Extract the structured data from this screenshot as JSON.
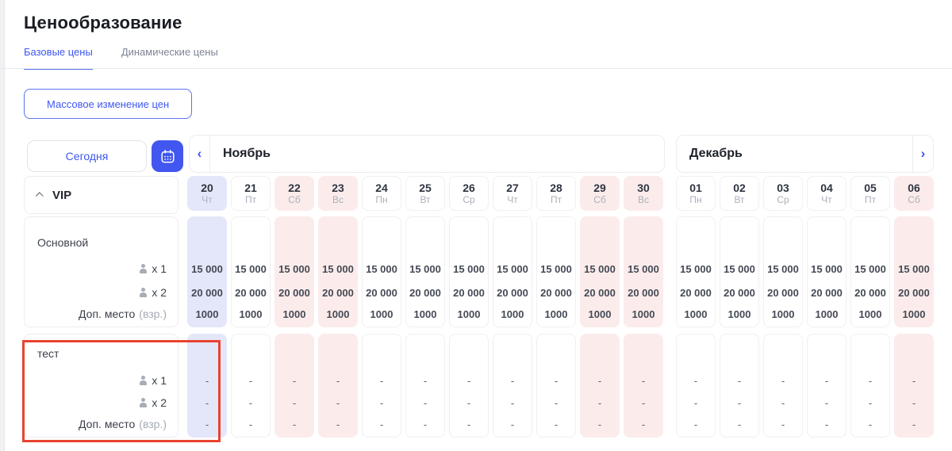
{
  "page": {
    "title": "Ценообразование"
  },
  "tabs": [
    {
      "label": "Базовые цены",
      "active": true
    },
    {
      "label": "Динамические цены",
      "active": false
    }
  ],
  "toolbar": {
    "mass_edit_label": "Массовое изменение цен",
    "today_label": "Сегодня",
    "calendar_icon": "calendar-icon"
  },
  "colors": {
    "accent_blue": "#3f57f0",
    "today_bg": "#e4e7f9",
    "weekend_bg": "#fbeceb",
    "annotation_red": "#e8432f"
  },
  "calendar": {
    "prev_icon": "‹",
    "next_icon": "›",
    "months": [
      {
        "name": "Ноябрь"
      },
      {
        "name": "Декабрь"
      }
    ],
    "days": [
      {
        "num": "20",
        "weekday": "Чт",
        "type": "today"
      },
      {
        "num": "21",
        "weekday": "Пт",
        "type": "normal"
      },
      {
        "num": "22",
        "weekday": "Сб",
        "type": "weekend"
      },
      {
        "num": "23",
        "weekday": "Вс",
        "type": "weekend"
      },
      {
        "num": "24",
        "weekday": "Пн",
        "type": "normal"
      },
      {
        "num": "25",
        "weekday": "Вт",
        "type": "normal"
      },
      {
        "num": "26",
        "weekday": "Ср",
        "type": "normal"
      },
      {
        "num": "27",
        "weekday": "Чт",
        "type": "normal"
      },
      {
        "num": "28",
        "weekday": "Пт",
        "type": "normal"
      },
      {
        "num": "29",
        "weekday": "Сб",
        "type": "weekend"
      },
      {
        "num": "30",
        "weekday": "Вс",
        "type": "weekend"
      },
      {
        "num": "01",
        "weekday": "Пн",
        "type": "normal"
      },
      {
        "num": "02",
        "weekday": "Вт",
        "type": "normal"
      },
      {
        "num": "03",
        "weekday": "Ср",
        "type": "normal"
      },
      {
        "num": "04",
        "weekday": "Чт",
        "type": "normal"
      },
      {
        "num": "05",
        "weekday": "Пт",
        "type": "normal"
      },
      {
        "num": "06",
        "weekday": "Сб",
        "type": "weekend"
      }
    ]
  },
  "room_category": {
    "name": "VIP",
    "collapse_icon": "chevron-up-icon"
  },
  "sections": [
    {
      "name": "Основной",
      "rows": [
        {
          "icon": "person-icon",
          "label": "x 1",
          "values": [
            "15 000",
            "15 000",
            "15 000",
            "15 000",
            "15 000",
            "15 000",
            "15 000",
            "15 000",
            "15 000",
            "15 000",
            "15 000",
            "15 000",
            "15 000",
            "15 000",
            "15 000",
            "15 000",
            "15 000"
          ]
        },
        {
          "icon": "person-icon",
          "label": "x 2",
          "values": [
            "20 000",
            "20 000",
            "20 000",
            "20 000",
            "20 000",
            "20 000",
            "20 000",
            "20 000",
            "20 000",
            "20 000",
            "20 000",
            "20 000",
            "20 000",
            "20 000",
            "20 000",
            "20 000",
            "20 000"
          ]
        },
        {
          "label": "Доп. место",
          "suffix": "(взр.)",
          "values": [
            "1000",
            "1000",
            "1000",
            "1000",
            "1000",
            "1000",
            "1000",
            "1000",
            "1000",
            "1000",
            "1000",
            "1000",
            "1000",
            "1000",
            "1000",
            "1000",
            "1000"
          ]
        }
      ]
    },
    {
      "name": "тест",
      "highlighted": true,
      "rows": [
        {
          "icon": "person-icon",
          "label": "x 1",
          "values": [
            "-",
            "-",
            "-",
            "-",
            "-",
            "-",
            "-",
            "-",
            "-",
            "-",
            "-",
            "-",
            "-",
            "-",
            "-",
            "-",
            "-"
          ]
        },
        {
          "icon": "person-icon",
          "label": "x 2",
          "values": [
            "-",
            "-",
            "-",
            "-",
            "-",
            "-",
            "-",
            "-",
            "-",
            "-",
            "-",
            "-",
            "-",
            "-",
            "-",
            "-",
            "-"
          ]
        },
        {
          "label": "Доп. место",
          "suffix": "(взр.)",
          "values": [
            "-",
            "-",
            "-",
            "-",
            "-",
            "-",
            "-",
            "-",
            "-",
            "-",
            "-",
            "-",
            "-",
            "-",
            "-",
            "-",
            "-"
          ]
        }
      ]
    }
  ]
}
